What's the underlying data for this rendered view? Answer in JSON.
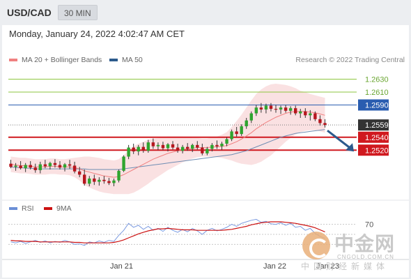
{
  "header": {
    "symbol": "USD/CAD",
    "timeframe": "30 MIN"
  },
  "datetime": "Monday, January 24, 2022 4:02:47 AM CET",
  "legend": {
    "ma20_label": "MA 20 + Bollinger Bands",
    "ma20_color": "#f08080",
    "ma50_label": "MA 50",
    "ma50_color": "#2c5a8c",
    "credit": "Research © 2022 Trading Central"
  },
  "rsi_legend": {
    "rsi_label": "RSI",
    "rsi_color": "#6b8fd6",
    "ma9_label": "9MA",
    "ma9_color": "#cc1111"
  },
  "watermark": {
    "main": "中金网",
    "url": "CNGOLD.COM.CN",
    "sub": "中国财经新媒体"
  },
  "chart_data": {
    "type": "candlestick",
    "ylim": [
      1.245,
      1.265
    ],
    "price_levels": [
      {
        "value": 1.263,
        "label": "1.2630",
        "kind": "target",
        "color": "#8dc63f"
      },
      {
        "value": 1.261,
        "label": "1.2610",
        "kind": "target",
        "color": "#8dc63f"
      },
      {
        "value": 1.259,
        "label": "1.2590",
        "kind": "pivot",
        "color": "#2a5db0"
      },
      {
        "value": 1.2559,
        "label": "1.2559",
        "kind": "current",
        "color": "#333333"
      },
      {
        "value": 1.254,
        "label": "1.2540",
        "kind": "support",
        "color": "#d0191f"
      },
      {
        "value": 1.252,
        "label": "1.2520",
        "kind": "support",
        "color": "#d0191f"
      }
    ],
    "x_labels": [
      "Jan 21",
      "Jan 22",
      "Jan 23"
    ],
    "candles": [
      [
        1.2499,
        1.2505,
        1.2492,
        1.2494
      ],
      [
        1.2494,
        1.25,
        1.2488,
        1.2496
      ],
      [
        1.2496,
        1.2503,
        1.249,
        1.2492
      ],
      [
        1.2492,
        1.25,
        1.2486,
        1.2497
      ],
      [
        1.2497,
        1.2503,
        1.249,
        1.2493
      ],
      [
        1.2493,
        1.2499,
        1.2485,
        1.2489
      ],
      [
        1.2489,
        1.2502,
        1.2484,
        1.2498
      ],
      [
        1.2498,
        1.2505,
        1.2492,
        1.2495
      ],
      [
        1.2495,
        1.2502,
        1.249,
        1.25
      ],
      [
        1.25,
        1.2506,
        1.2493,
        1.2497
      ],
      [
        1.2497,
        1.2503,
        1.249,
        1.2493
      ],
      [
        1.2493,
        1.25,
        1.2487,
        1.2498
      ],
      [
        1.2498,
        1.2505,
        1.2491,
        1.2496
      ],
      [
        1.2496,
        1.2502,
        1.2484,
        1.2487
      ],
      [
        1.2487,
        1.2494,
        1.2478,
        1.2482
      ],
      [
        1.2482,
        1.249,
        1.2465,
        1.2468
      ],
      [
        1.2468,
        1.248,
        1.2464,
        1.2476
      ],
      [
        1.2476,
        1.2482,
        1.2466,
        1.2471
      ],
      [
        1.2471,
        1.2478,
        1.2465,
        1.2474
      ],
      [
        1.2474,
        1.248,
        1.2468,
        1.2472
      ],
      [
        1.2472,
        1.2477,
        1.2466,
        1.2469
      ],
      [
        1.2469,
        1.2476,
        1.2464,
        1.2473
      ],
      [
        1.2473,
        1.249,
        1.247,
        1.2488
      ],
      [
        1.2488,
        1.2512,
        1.2486,
        1.251
      ],
      [
        1.251,
        1.2528,
        1.2506,
        1.2524
      ],
      [
        1.2524,
        1.253,
        1.2514,
        1.2518
      ],
      [
        1.2518,
        1.2528,
        1.2512,
        1.2525
      ],
      [
        1.2525,
        1.2532,
        1.2516,
        1.2519
      ],
      [
        1.2519,
        1.2536,
        1.2516,
        1.2532
      ],
      [
        1.2532,
        1.2538,
        1.2522,
        1.2526
      ],
      [
        1.2526,
        1.2532,
        1.252,
        1.2528
      ],
      [
        1.2528,
        1.2533,
        1.252,
        1.2523
      ],
      [
        1.2523,
        1.2531,
        1.2518,
        1.2529
      ],
      [
        1.2529,
        1.2534,
        1.2521,
        1.2524
      ],
      [
        1.2524,
        1.253,
        1.2516,
        1.2519
      ],
      [
        1.2519,
        1.2528,
        1.2515,
        1.2525
      ],
      [
        1.2525,
        1.2531,
        1.2519,
        1.2522
      ],
      [
        1.2522,
        1.253,
        1.2517,
        1.2528
      ],
      [
        1.2528,
        1.2534,
        1.2521,
        1.2524
      ],
      [
        1.2524,
        1.253,
        1.2512,
        1.2515
      ],
      [
        1.2515,
        1.2525,
        1.2512,
        1.2522
      ],
      [
        1.2522,
        1.2531,
        1.2518,
        1.2528
      ],
      [
        1.2528,
        1.2535,
        1.2522,
        1.2526
      ],
      [
        1.2526,
        1.2533,
        1.252,
        1.253
      ],
      [
        1.253,
        1.254,
        1.2526,
        1.2537
      ],
      [
        1.2537,
        1.2552,
        1.2534,
        1.2549
      ],
      [
        1.2549,
        1.2556,
        1.2541,
        1.2545
      ],
      [
        1.2545,
        1.256,
        1.2542,
        1.2557
      ],
      [
        1.2557,
        1.257,
        1.2553,
        1.2566
      ],
      [
        1.2566,
        1.258,
        1.2562,
        1.2577
      ],
      [
        1.2577,
        1.259,
        1.2573,
        1.2586
      ],
      [
        1.2586,
        1.2593,
        1.2578,
        1.2583
      ],
      [
        1.2583,
        1.2592,
        1.2577,
        1.2589
      ],
      [
        1.2589,
        1.2593,
        1.258,
        1.2584
      ],
      [
        1.2584,
        1.259,
        1.2578,
        1.2583
      ],
      [
        1.2583,
        1.2589,
        1.2576,
        1.2586
      ],
      [
        1.2586,
        1.259,
        1.2578,
        1.2581
      ],
      [
        1.2581,
        1.2588,
        1.2575,
        1.2585
      ],
      [
        1.2585,
        1.2589,
        1.2574,
        1.2577
      ],
      [
        1.2577,
        1.2584,
        1.257,
        1.258
      ],
      [
        1.258,
        1.2585,
        1.257,
        1.2574
      ],
      [
        1.2574,
        1.2582,
        1.2566,
        1.2577
      ],
      [
        1.2577,
        1.258,
        1.2565,
        1.2568
      ],
      [
        1.2568,
        1.2574,
        1.2558,
        1.2562
      ],
      [
        1.2562,
        1.2568,
        1.2555,
        1.2559
      ]
    ],
    "ma20": [
      1.2498,
      1.2497,
      1.2496,
      1.2496,
      1.2495,
      1.2494,
      1.2494,
      1.2494,
      1.2495,
      1.2495,
      1.2494,
      1.2494,
      1.2494,
      1.2493,
      1.2491,
      1.2488,
      1.2486,
      1.2484,
      1.2482,
      1.248,
      1.2479,
      1.2478,
      1.2479,
      1.2482,
      1.2486,
      1.249,
      1.2494,
      1.2498,
      1.2502,
      1.2506,
      1.2509,
      1.2512,
      1.2515,
      1.2517,
      1.2519,
      1.2521,
      1.2522,
      1.2523,
      1.2524,
      1.2524,
      1.2524,
      1.2525,
      1.2525,
      1.2526,
      1.2527,
      1.253,
      1.2533,
      1.2537,
      1.2542,
      1.2547,
      1.2553,
      1.2558,
      1.2563,
      1.2567,
      1.2571,
      1.2574,
      1.2577,
      1.2579,
      1.258,
      1.258,
      1.258,
      1.2579,
      1.2578,
      1.2576,
      1.2574
    ],
    "ma50": [
      1.2494,
      1.2493,
      1.2493,
      1.2492,
      1.2492,
      1.2491,
      1.2491,
      1.2491,
      1.2491,
      1.2491,
      1.2491,
      1.2491,
      1.2491,
      1.2491,
      1.2491,
      1.2491,
      1.249,
      1.249,
      1.249,
      1.249,
      1.249,
      1.249,
      1.249,
      1.2491,
      1.2492,
      1.2493,
      1.2494,
      1.2495,
      1.2496,
      1.2497,
      1.2498,
      1.2499,
      1.25,
      1.2501,
      1.2502,
      1.2503,
      1.2504,
      1.2505,
      1.2506,
      1.2507,
      1.2508,
      1.2509,
      1.251,
      1.2511,
      1.2512,
      1.2513,
      1.2515,
      1.2517,
      1.2519,
      1.2522,
      1.2525,
      1.2528,
      1.2531,
      1.2534,
      1.2537,
      1.254,
      1.2542,
      1.2544,
      1.2546,
      1.2547,
      1.2548,
      1.2549,
      1.255,
      1.2551,
      1.2552
    ],
    "bb_width": [
      0.0012,
      0.0012,
      0.0012,
      0.0012,
      0.0012,
      0.0012,
      0.0012,
      0.0012,
      0.0012,
      0.0012,
      0.0012,
      0.0012,
      0.0013,
      0.0015,
      0.0018,
      0.0022,
      0.0024,
      0.0025,
      0.0026,
      0.0026,
      0.0026,
      0.0026,
      0.0027,
      0.003,
      0.0034,
      0.0036,
      0.0036,
      0.0035,
      0.0034,
      0.0032,
      0.003,
      0.0028,
      0.0026,
      0.0024,
      0.0022,
      0.002,
      0.0018,
      0.0016,
      0.0015,
      0.0014,
      0.0014,
      0.0015,
      0.0016,
      0.0018,
      0.0021,
      0.0026,
      0.0032,
      0.0038,
      0.0044,
      0.005,
      0.0054,
      0.0056,
      0.0056,
      0.0055,
      0.0052,
      0.0048,
      0.0044,
      0.004,
      0.0036,
      0.0032,
      0.003,
      0.0028,
      0.0027,
      0.0027,
      0.0027
    ],
    "forecast_arrow": {
      "from": 1.2559,
      "to": 1.252
    },
    "rsi": {
      "ylim": [
        0,
        100
      ],
      "level_label": "70",
      "level": 70,
      "rsi": [
        35,
        33,
        36,
        32,
        35,
        38,
        34,
        37,
        33,
        36,
        34,
        38,
        35,
        30,
        31,
        28,
        35,
        33,
        37,
        34,
        38,
        36,
        48,
        58,
        72,
        64,
        68,
        60,
        66,
        58,
        62,
        56,
        64,
        58,
        54,
        60,
        55,
        62,
        57,
        50,
        58,
        62,
        57,
        60,
        64,
        70,
        66,
        72,
        75,
        78,
        80,
        74,
        76,
        71,
        70,
        73,
        68,
        72,
        64,
        66,
        58,
        62,
        52,
        46,
        42
      ],
      "ma9": [
        38,
        37,
        37,
        36,
        36,
        36,
        35,
        35,
        35,
        35,
        35,
        35,
        35,
        34,
        34,
        33,
        33,
        33,
        33,
        33,
        33,
        34,
        36,
        39,
        43,
        47,
        51,
        54,
        57,
        59,
        61,
        61,
        62,
        61,
        60,
        59,
        59,
        59,
        58,
        58,
        58,
        58,
        58,
        58,
        59,
        60,
        62,
        64,
        66,
        69,
        71,
        73,
        74,
        75,
        75,
        75,
        74,
        73,
        72,
        70,
        68,
        66,
        63,
        59,
        55
      ]
    }
  }
}
